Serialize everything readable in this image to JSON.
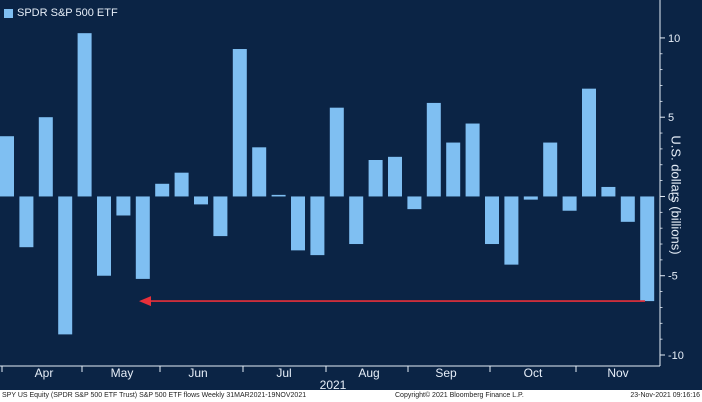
{
  "chart_data": {
    "type": "bar",
    "legend": "SPDR S&P 500 ETF",
    "ylabel": "U.S. dollars (billions)",
    "xlabel": "2021",
    "ylim": [
      -10,
      10.5
    ],
    "yticks": [
      10,
      5,
      0,
      -5,
      -10
    ],
    "months": [
      "Apr",
      "May",
      "Jun",
      "Jul",
      "Aug",
      "Sep",
      "Oct",
      "Nov"
    ],
    "values": [
      3.8,
      -3.2,
      5.0,
      -8.7,
      10.3,
      -5.0,
      -1.2,
      -5.2,
      0.8,
      1.5,
      -0.5,
      -2.5,
      9.3,
      3.1,
      0.1,
      -3.4,
      -3.7,
      5.6,
      -3.0,
      2.3,
      2.5,
      -0.8,
      5.9,
      3.4,
      4.6,
      -3.0,
      -4.3,
      -0.2,
      3.4,
      -0.9,
      6.8,
      0.6,
      -1.6,
      -6.6
    ],
    "annotation": {
      "type": "arrow",
      "color": "#e8303a",
      "y": -6.6
    }
  },
  "colors": {
    "background": "#0b2445",
    "bar": "#7fbff2",
    "arrow": "#e8303a",
    "axis": "#e6eef8"
  },
  "footer": {
    "left": "SPY US Equity (SPDR S&P 500 ETF Trust) S&P 500 ETF flows  Weekly 31MAR2021-19NOV2021",
    "center": "Copyright© 2021 Bloomberg Finance L.P.",
    "right": "23-Nov-2021 09:16:16"
  }
}
